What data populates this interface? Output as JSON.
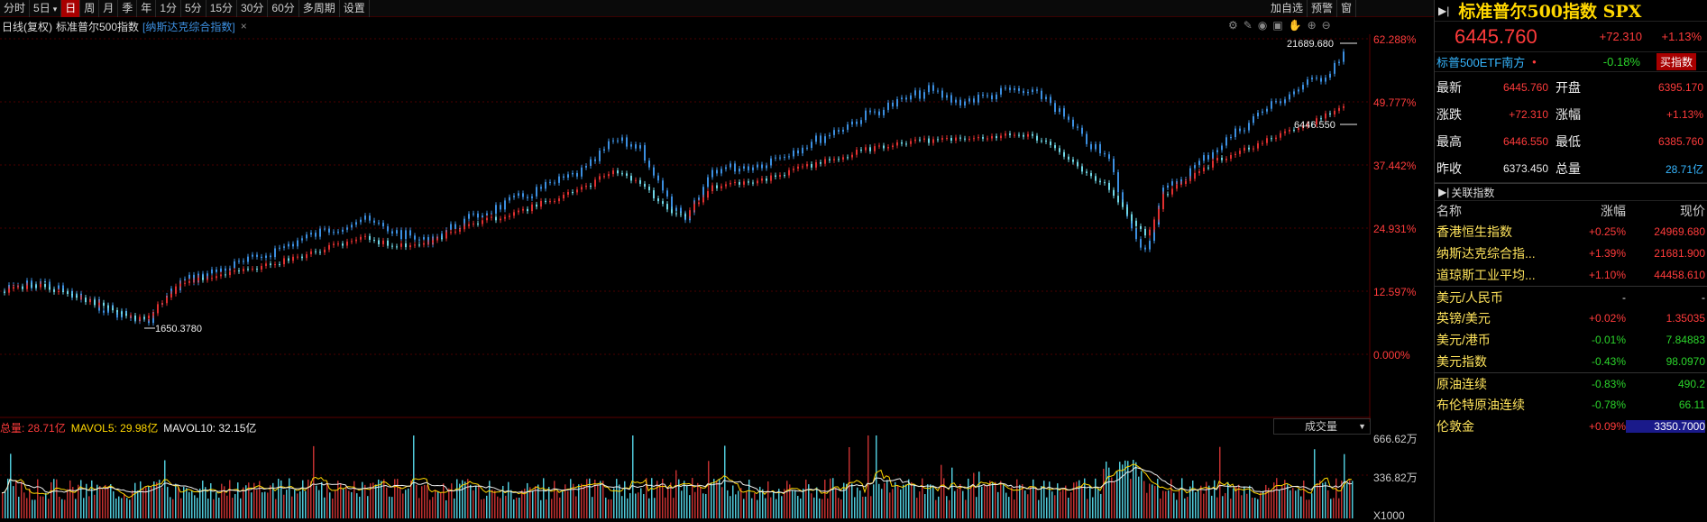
{
  "toolbar": {
    "periods": [
      "分时",
      "5日",
      "日",
      "周",
      "月",
      "季",
      "年",
      "1分",
      "5分",
      "15分",
      "30分",
      "60分",
      "多周期",
      "设置"
    ],
    "active": "日",
    "right_tools": [
      "加自选",
      "预警",
      "窗"
    ]
  },
  "chart_header": {
    "mode": "日线(复权)",
    "symbol": "标准普尔500指数",
    "overlay": "[纳斯达克综合指数]",
    "close_x": "×"
  },
  "price_axis": {
    "ticks": [
      "62.288%",
      "49.777%",
      "37.442%",
      "24.931%",
      "12.597%",
      "0.000%"
    ],
    "grid_color": "#4a0000"
  },
  "labels": {
    "high_nasdaq": "21689.680",
    "high_spx": "6446.550",
    "low": "1650.3780"
  },
  "volume": {
    "header_total": "总量: 28.71亿",
    "mavol5": "MAVOL5: 29.98亿",
    "mavol10": "MAVOL10: 32.15亿",
    "selector": "成交量",
    "ticks": [
      "666.62万",
      "336.82万",
      "X1000"
    ]
  },
  "quote": {
    "name": "标准普尔500指数 SPX",
    "price": "6445.760",
    "change": "+72.310",
    "change_pct": "+1.13%",
    "etf_name": "标普500ETF南方",
    "etf_change": "-0.18%",
    "buy_label": "买指数",
    "fields": [
      {
        "k": "最新",
        "v": "6445.760",
        "k2": "开盘",
        "v2": "6395.170",
        "c": "red",
        "c2": "red"
      },
      {
        "k": "涨跌",
        "v": "+72.310",
        "k2": "涨幅",
        "v2": "+1.13%",
        "c": "red",
        "c2": "red"
      },
      {
        "k": "最高",
        "v": "6446.550",
        "k2": "最低",
        "v2": "6385.760",
        "c": "red",
        "c2": "red"
      },
      {
        "k": "昨收",
        "v": "6373.450",
        "k2": "总量",
        "v2": "28.71亿",
        "c": "white",
        "c2": "cyan"
      }
    ]
  },
  "related": {
    "title": "关联指数",
    "headers": [
      "名称",
      "涨幅",
      "现价"
    ],
    "rows": [
      {
        "name": "香港恒生指数",
        "pct": "+0.25%",
        "price": "24969.680",
        "c": "red"
      },
      {
        "name": "纳斯达克综合指...",
        "pct": "+1.39%",
        "price": "21681.900",
        "c": "red"
      },
      {
        "name": "道琼斯工业平均...",
        "pct": "+1.10%",
        "price": "44458.610",
        "c": "red"
      },
      {
        "name": "美元/人民币",
        "pct": "-",
        "price": "-",
        "c": "white"
      },
      {
        "name": "英镑/美元",
        "pct": "+0.02%",
        "price": "1.35035",
        "c": "red"
      },
      {
        "name": "美元/港币",
        "pct": "-0.01%",
        "price": "7.84883",
        "c": "green"
      },
      {
        "name": "美元指数",
        "pct": "-0.43%",
        "price": "98.0970",
        "c": "green"
      },
      {
        "name": "原油连续",
        "pct": "-0.83%",
        "price": "490.2",
        "c": "green"
      },
      {
        "name": "布伦特原油连续",
        "pct": "-0.78%",
        "price": "66.11",
        "c": "green"
      },
      {
        "name": "伦敦金",
        "pct": "+0.09%",
        "price": "3350.7000",
        "c": "red"
      }
    ]
  },
  "colors": {
    "up": "#ff3b3b",
    "down": "#2bd42b",
    "nasdaq": "#3c8fe0",
    "spx_up": "#e03030",
    "spx_down": "#6fd6e6"
  }
}
